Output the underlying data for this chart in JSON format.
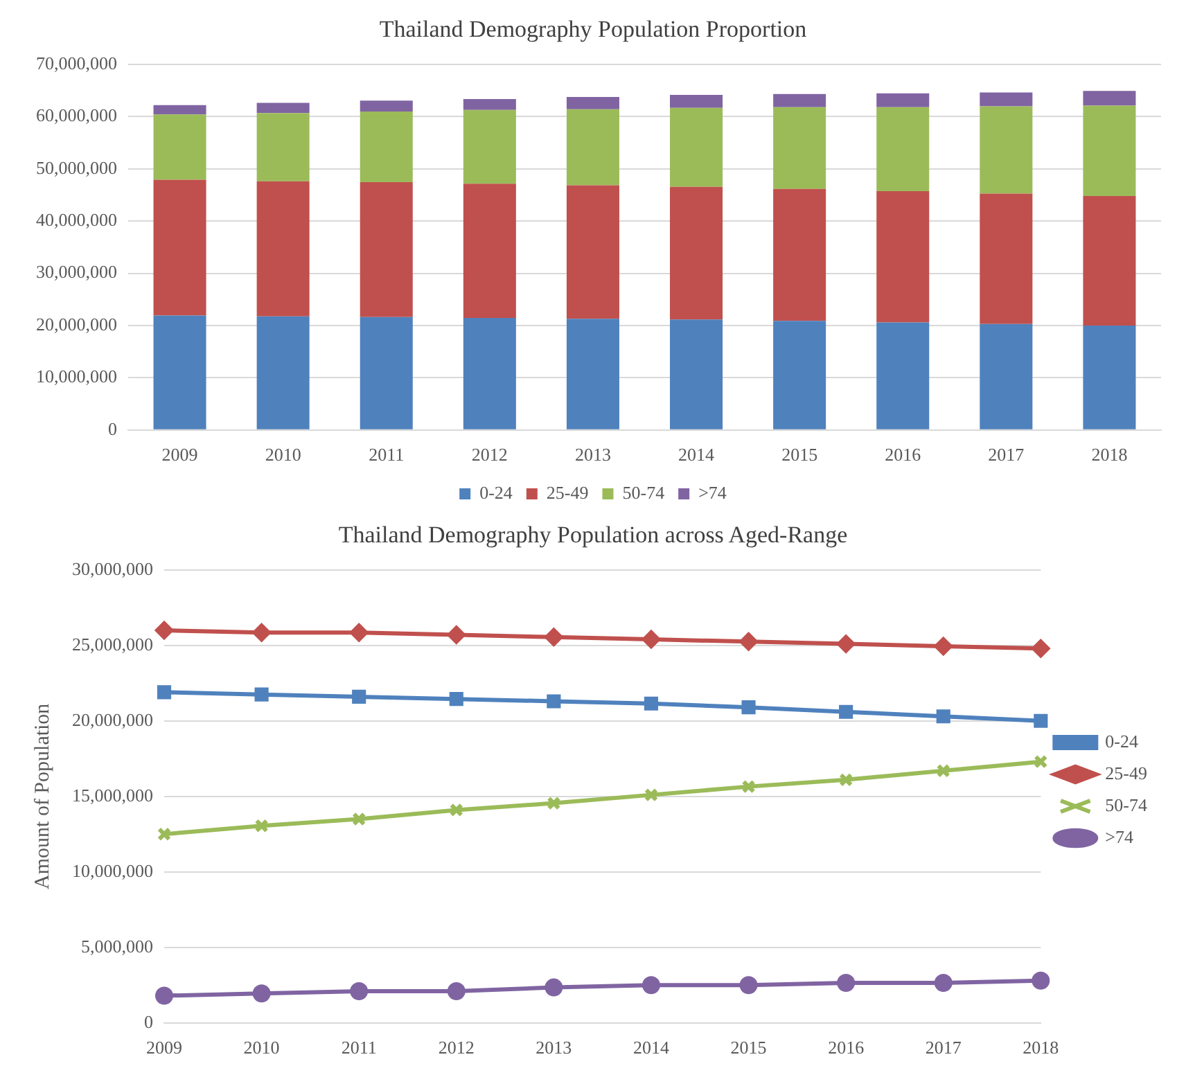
{
  "chart_data": [
    {
      "type": "bar",
      "title": "Thailand Demography Population Proportion",
      "stacked": true,
      "categories": [
        "2009",
        "2010",
        "2011",
        "2012",
        "2013",
        "2014",
        "2015",
        "2016",
        "2017",
        "2018"
      ],
      "series": [
        {
          "name": "0-24",
          "color": "#4f81bd",
          "values": [
            21900000,
            21750000,
            21600000,
            21450000,
            21300000,
            21150000,
            20900000,
            20600000,
            20300000,
            20000000
          ]
        },
        {
          "name": "25-49",
          "color": "#c0504d",
          "values": [
            26000000,
            25850000,
            25850000,
            25700000,
            25550000,
            25400000,
            25250000,
            25100000,
            24950000,
            24800000
          ]
        },
        {
          "name": "50-74",
          "color": "#9bbb59",
          "values": [
            12500000,
            13050000,
            13500000,
            14100000,
            14550000,
            15100000,
            15650000,
            16100000,
            16700000,
            17300000
          ]
        },
        {
          "name": ">74",
          "color": "#8064a2",
          "values": [
            1800000,
            1950000,
            2100000,
            2100000,
            2350000,
            2500000,
            2500000,
            2650000,
            2650000,
            2800000
          ]
        }
      ],
      "ylim": [
        0,
        70000000
      ],
      "yticks": [
        {
          "value": 0,
          "label": "0"
        },
        {
          "value": 10000000,
          "label": "10,000,000"
        },
        {
          "value": 20000000,
          "label": "20,000,000"
        },
        {
          "value": 30000000,
          "label": "30,000,000"
        },
        {
          "value": 40000000,
          "label": "40,000,000"
        },
        {
          "value": 50000000,
          "label": "50,000,000"
        },
        {
          "value": 60000000,
          "label": "60,000,000"
        },
        {
          "value": 70000000,
          "label": "70,000,000"
        }
      ],
      "grid": "y",
      "legend": "bottom"
    },
    {
      "type": "line",
      "title": "Thailand Demography Population across Aged-Range",
      "ylabel": "Amount of Population",
      "categories": [
        "2009",
        "2010",
        "2011",
        "2012",
        "2013",
        "2014",
        "2015",
        "2016",
        "2017",
        "2018"
      ],
      "series": [
        {
          "name": "0-24",
          "color": "#4f81bd",
          "marker": "square",
          "values": [
            21900000,
            21750000,
            21600000,
            21450000,
            21300000,
            21150000,
            20900000,
            20600000,
            20300000,
            20000000
          ]
        },
        {
          "name": "25-49",
          "color": "#c0504d",
          "marker": "diamond",
          "values": [
            26000000,
            25850000,
            25850000,
            25700000,
            25550000,
            25400000,
            25250000,
            25100000,
            24950000,
            24800000
          ]
        },
        {
          "name": "50-74",
          "color": "#9bbb59",
          "marker": "cross",
          "values": [
            12500000,
            13050000,
            13500000,
            14100000,
            14550000,
            15100000,
            15650000,
            16100000,
            16700000,
            17300000
          ]
        },
        {
          "name": ">74",
          "color": "#8064a2",
          "marker": "circle",
          "values": [
            1800000,
            1950000,
            2100000,
            2100000,
            2350000,
            2500000,
            2500000,
            2650000,
            2650000,
            2800000
          ]
        }
      ],
      "ylim": [
        0,
        30000000
      ],
      "yticks": [
        {
          "value": 0,
          "label": "0"
        },
        {
          "value": 5000000,
          "label": "5,000,000"
        },
        {
          "value": 10000000,
          "label": "10,000,000"
        },
        {
          "value": 15000000,
          "label": "15,000,000"
        },
        {
          "value": 20000000,
          "label": "20,000,000"
        },
        {
          "value": 25000000,
          "label": "25,000,000"
        },
        {
          "value": 30000000,
          "label": "30,000,000"
        }
      ],
      "grid": "y",
      "legend": "right"
    }
  ]
}
